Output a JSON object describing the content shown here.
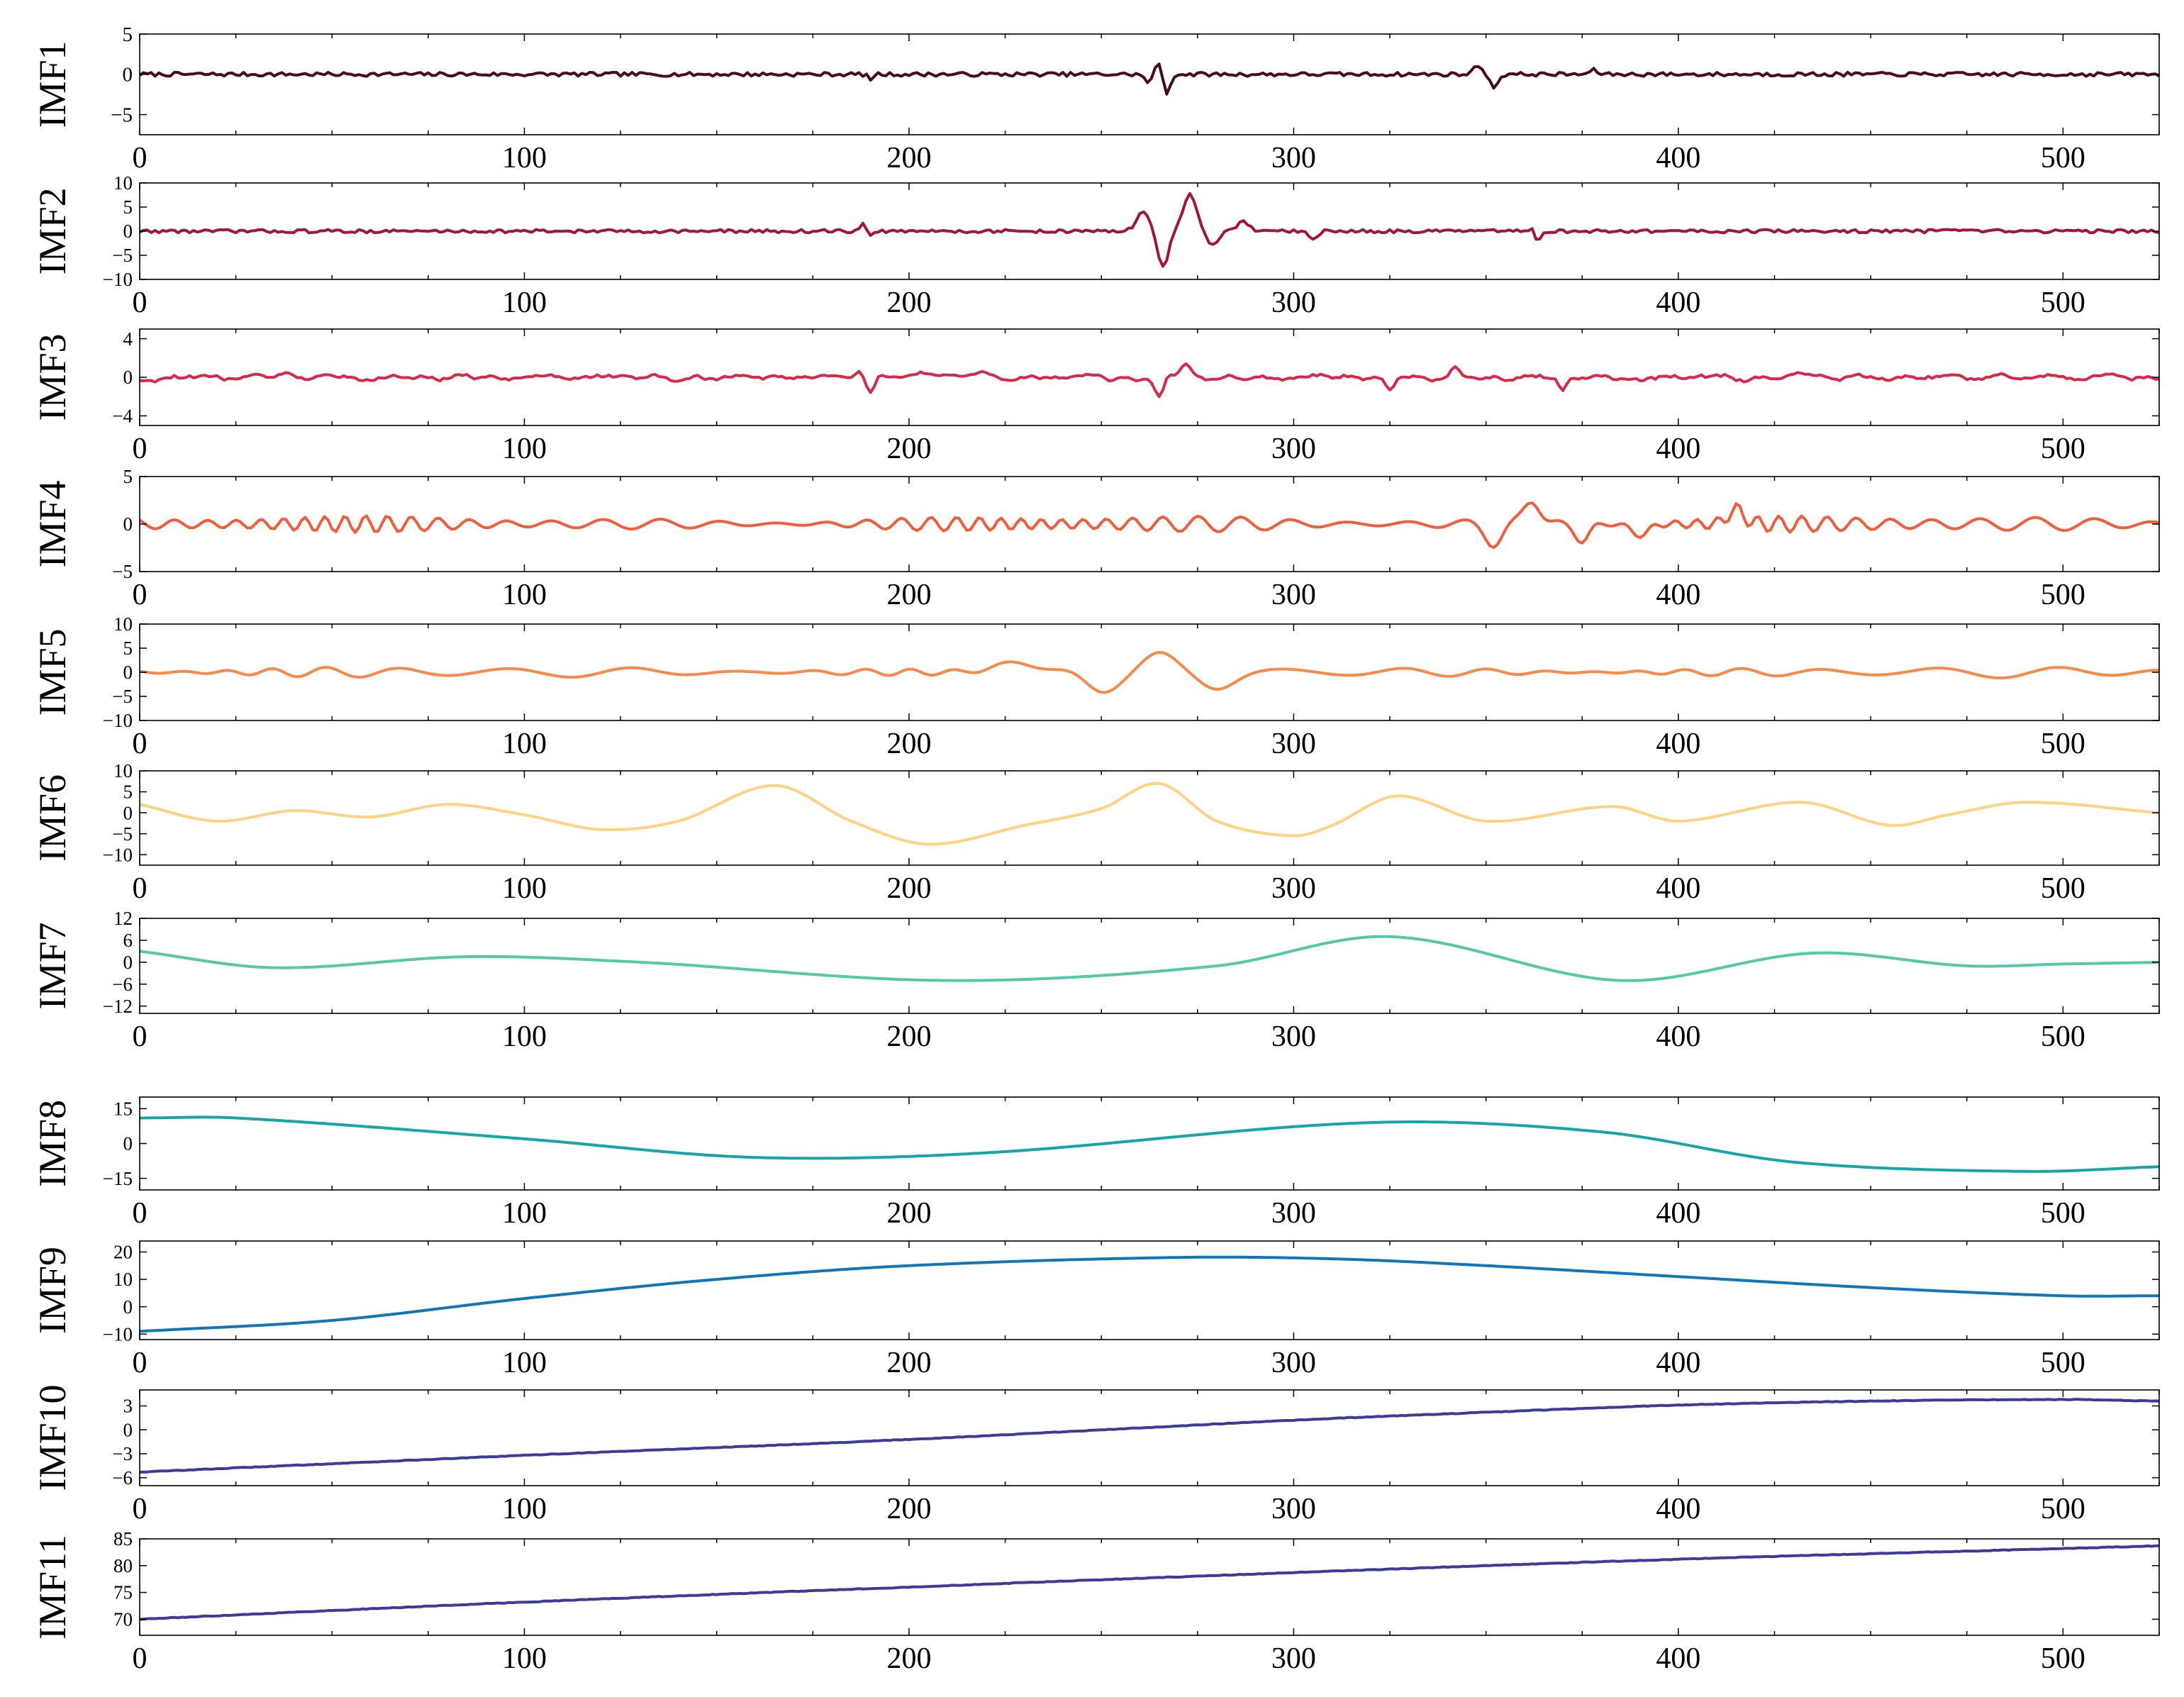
{
  "chart_data": [
    {
      "type": "line",
      "ylabel": "IMF1",
      "xlim": [
        0,
        525
      ],
      "ylim": [
        -7.5,
        5
      ],
      "yticks": [
        -5,
        0,
        5
      ],
      "xticks": [
        0,
        100,
        200,
        300,
        400,
        500
      ],
      "color": "#4a0a1e",
      "kind": "noise",
      "amp": 0.25,
      "smooth": 1,
      "features": [
        [
          265,
          1.3,
          1.2
        ],
        [
          267,
          -2.5,
          1.2
        ],
        [
          262,
          -1.2,
          1
        ],
        [
          348,
          1.2,
          1.5
        ],
        [
          352,
          -1.6,
          1.5
        ],
        [
          190,
          -0.6,
          1
        ],
        [
          378,
          0.5,
          1.5
        ]
      ]
    },
    {
      "type": "line",
      "ylabel": "IMF2",
      "xlim": [
        0,
        525
      ],
      "ylim": [
        -10,
        10
      ],
      "yticks": [
        -10,
        -5,
        0,
        5,
        10
      ],
      "xticks": [
        0,
        100,
        200,
        300,
        400,
        500
      ],
      "color": "#a3143f",
      "kind": "noise",
      "amp": 0.35,
      "smooth": 1,
      "features": [
        [
          261,
          4,
          2.5
        ],
        [
          266,
          -7.5,
          2
        ],
        [
          273,
          7.5,
          2.5
        ],
        [
          279,
          -3,
          2
        ],
        [
          287,
          2,
          2
        ],
        [
          305,
          -2,
          1.5
        ],
        [
          363,
          -2.5,
          1.5
        ],
        [
          362,
          2,
          1
        ],
        [
          188,
          1.5,
          1
        ],
        [
          190,
          -1.2,
          1
        ]
      ]
    },
    {
      "type": "line",
      "ylabel": "IMF3",
      "xlim": [
        0,
        525
      ],
      "ylim": [
        -5,
        5
      ],
      "yticks": [
        -4,
        0,
        4
      ],
      "xticks": [
        0,
        100,
        200,
        300,
        400,
        500
      ],
      "color": "#d8294a",
      "kind": "noise",
      "amp": 0.5,
      "smooth": 2,
      "features": [
        [
          190,
          -1.8,
          1.5
        ],
        [
          187,
          1,
          1.5
        ],
        [
          265,
          -2,
          1.5
        ],
        [
          272,
          1.5,
          2
        ],
        [
          325,
          -1.5,
          1.5
        ],
        [
          342,
          1.2,
          1.5
        ],
        [
          370,
          -1.5,
          1.5
        ]
      ]
    },
    {
      "type": "line",
      "ylabel": "IMF4",
      "xlim": [
        0,
        525
      ],
      "ylim": [
        -5,
        5
      ],
      "yticks": [
        -5,
        0,
        5
      ],
      "xticks": [
        0,
        100,
        200,
        300,
        400,
        500
      ],
      "color": "#f15e3c",
      "kind": "wave",
      "amp": 0.9,
      "period": 13,
      "features": [
        [
          362,
          2.5,
          3
        ],
        [
          352,
          -2,
          3
        ],
        [
          375,
          -1.8,
          2.5
        ],
        [
          415,
          1.5,
          3
        ],
        [
          390,
          -1.2,
          3
        ]
      ]
    },
    {
      "type": "line",
      "ylabel": "IMF5",
      "xlim": [
        0,
        525
      ],
      "ylim": [
        -10,
        10
      ],
      "yticks": [
        -10,
        -5,
        0,
        5,
        10
      ],
      "xticks": [
        0,
        100,
        200,
        300,
        400,
        500
      ],
      "color": "#f7894a",
      "kind": "wave",
      "amp": 1.2,
      "period": 28,
      "features": [
        [
          228,
          2,
          8
        ],
        [
          250,
          -3.5,
          6
        ],
        [
          265,
          3,
          6
        ],
        [
          280,
          -2.5,
          6
        ]
      ]
    },
    {
      "type": "line",
      "ylabel": "IMF6",
      "xlim": [
        0,
        525
      ],
      "ylim": [
        -12.5,
        10
      ],
      "yticks": [
        -10,
        -5,
        0,
        5,
        10
      ],
      "xticks": [
        0,
        100,
        200,
        300,
        400,
        500
      ],
      "color": "#fdd381",
      "points": [
        [
          0,
          2
        ],
        [
          20,
          -2
        ],
        [
          40,
          0.5
        ],
        [
          60,
          -1
        ],
        [
          80,
          2
        ],
        [
          100,
          -0.5
        ],
        [
          120,
          -4
        ],
        [
          140,
          -2
        ],
        [
          165,
          6.5
        ],
        [
          185,
          -2
        ],
        [
          205,
          -7.5
        ],
        [
          230,
          -3
        ],
        [
          250,
          1
        ],
        [
          265,
          7
        ],
        [
          280,
          -2
        ],
        [
          300,
          -5.5
        ],
        [
          310,
          -3
        ],
        [
          327,
          4
        ],
        [
          350,
          -2
        ],
        [
          383,
          1.5
        ],
        [
          400,
          -2
        ],
        [
          432,
          2.5
        ],
        [
          455,
          -3
        ],
        [
          470,
          -0.5
        ],
        [
          490,
          2.5
        ],
        [
          525,
          0
        ]
      ]
    },
    {
      "type": "line",
      "ylabel": "IMF7",
      "xlim": [
        0,
        525
      ],
      "ylim": [
        -14,
        12
      ],
      "yticks": [
        -12,
        -6,
        0,
        6,
        12
      ],
      "xticks": [
        0,
        100,
        200,
        300,
        400,
        500
      ],
      "color": "#55c9a6",
      "points": [
        [
          0,
          3
        ],
        [
          35,
          -1.5
        ],
        [
          85,
          1.5
        ],
        [
          130,
          0
        ],
        [
          210,
          -5
        ],
        [
          280,
          -1
        ],
        [
          325,
          7
        ],
        [
          385,
          -5
        ],
        [
          435,
          2.5
        ],
        [
          475,
          -1
        ],
        [
          500,
          -0.5
        ],
        [
          525,
          0
        ]
      ]
    },
    {
      "type": "line",
      "ylabel": "IMF8",
      "xlim": [
        0,
        525
      ],
      "ylim": [
        -20,
        20
      ],
      "yticks": [
        -15,
        0,
        15
      ],
      "xticks": [
        0,
        100,
        200,
        300,
        400,
        500
      ],
      "color": "#16a6a8",
      "points": [
        [
          0,
          11
        ],
        [
          25,
          11
        ],
        [
          100,
          2
        ],
        [
          160,
          -6
        ],
        [
          220,
          -4
        ],
        [
          320,
          9
        ],
        [
          380,
          5
        ],
        [
          430,
          -8
        ],
        [
          490,
          -12
        ],
        [
          525,
          -10
        ]
      ]
    },
    {
      "type": "line",
      "ylabel": "IMF9",
      "xlim": [
        0,
        525
      ],
      "ylim": [
        -12,
        24
      ],
      "yticks": [
        -10,
        0,
        10,
        20
      ],
      "xticks": [
        0,
        100,
        200,
        300,
        400,
        500
      ],
      "color": "#1176b8",
      "points": [
        [
          0,
          -9
        ],
        [
          50,
          -5
        ],
        [
          100,
          3
        ],
        [
          150,
          10
        ],
        [
          200,
          15
        ],
        [
          270,
          18
        ],
        [
          310,
          17.5
        ],
        [
          350,
          15
        ],
        [
          400,
          11
        ],
        [
          450,
          7
        ],
        [
          500,
          4
        ],
        [
          525,
          4
        ]
      ]
    },
    {
      "type": "line",
      "ylabel": "IMF10",
      "xlim": [
        0,
        525
      ],
      "ylim": [
        -7,
        5
      ],
      "yticks": [
        -6,
        -3,
        0,
        3
      ],
      "xticks": [
        0,
        100,
        200,
        300,
        400,
        500
      ],
      "color": "#3f3a9a",
      "points": [
        [
          0,
          -5.3
        ],
        [
          100,
          -3.2
        ],
        [
          200,
          -1.2
        ],
        [
          300,
          1.2
        ],
        [
          350,
          2.2
        ],
        [
          400,
          3.1
        ],
        [
          450,
          3.6
        ],
        [
          500,
          3.8
        ],
        [
          525,
          3.6
        ]
      ]
    },
    {
      "type": "line",
      "ylabel": "IMF11",
      "xlim": [
        0,
        525
      ],
      "ylim": [
        67,
        85
      ],
      "yticks": [
        70,
        75,
        80,
        85
      ],
      "xticks": [
        0,
        100,
        200,
        300,
        400,
        500
      ],
      "color": "#40389a",
      "points": [
        [
          0,
          70
        ],
        [
          100,
          73.2
        ],
        [
          200,
          76
        ],
        [
          300,
          78.7
        ],
        [
          400,
          81.2
        ],
        [
          500,
          83.2
        ],
        [
          525,
          83.7
        ]
      ]
    }
  ]
}
